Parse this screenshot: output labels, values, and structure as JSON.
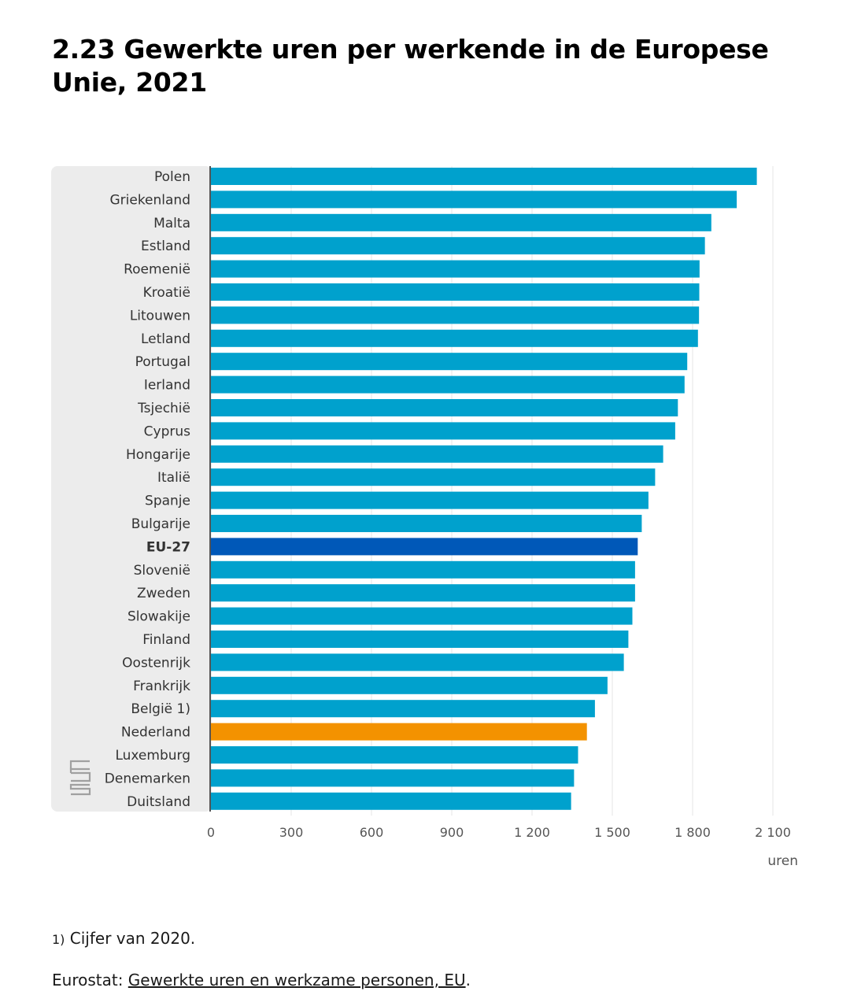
{
  "page": {
    "title": "2.23 Gewerkte uren per werkende in de Europese Unie, 2021",
    "footnote_marker": "1)",
    "footnote_text": " Cijfer van 2020.",
    "source_prefix": "Eurostat: ",
    "source_link": "Gewerkte uren en werkzame personen, EU",
    "source_suffix": ".",
    "logo_icon": "cbs-logo-icon"
  },
  "chart_data": {
    "type": "bar",
    "orientation": "horizontal",
    "title": "2.23 Gewerkte uren per werkende in de Europese Unie, 2021",
    "xlabel": "uren",
    "ylabel": "",
    "xlim": [
      0,
      2100
    ],
    "ticks": [
      0,
      300,
      600,
      900,
      1200,
      1500,
      1800,
      2100
    ],
    "tick_labels": [
      "0",
      "300",
      "600",
      "900",
      "1 200",
      "1 500",
      "1 800",
      "2 100"
    ],
    "grid": true,
    "colors": {
      "default": "#00a1cd",
      "highlight_eu": "#0058b8",
      "highlight_nl": "#f39200"
    },
    "categories": [
      "Polen",
      "Griekenland",
      "Malta",
      "Estland",
      "Roemenië",
      "Kroatië",
      "Litouwen",
      "Letland",
      "Portugal",
      "Ierland",
      "Tsjechië",
      "Cyprus",
      "Hongarije",
      "Italië",
      "Spanje",
      "Bulgarije",
      "EU-27",
      "Slovenië",
      "Zweden",
      "Slowakije",
      "Finland",
      "Oostenrijk",
      "Frankrijk",
      "België 1)",
      "Nederland",
      "Luxemburg",
      "Denemarken",
      "Duitsland"
    ],
    "values": [
      2040,
      1965,
      1870,
      1846,
      1826,
      1825,
      1824,
      1820,
      1780,
      1770,
      1745,
      1735,
      1690,
      1660,
      1635,
      1610,
      1595,
      1585,
      1585,
      1575,
      1560,
      1543,
      1482,
      1435,
      1405,
      1372,
      1357,
      1346
    ],
    "highlights": {
      "EU-27": "highlight_eu",
      "Nederland": "highlight_nl"
    }
  }
}
